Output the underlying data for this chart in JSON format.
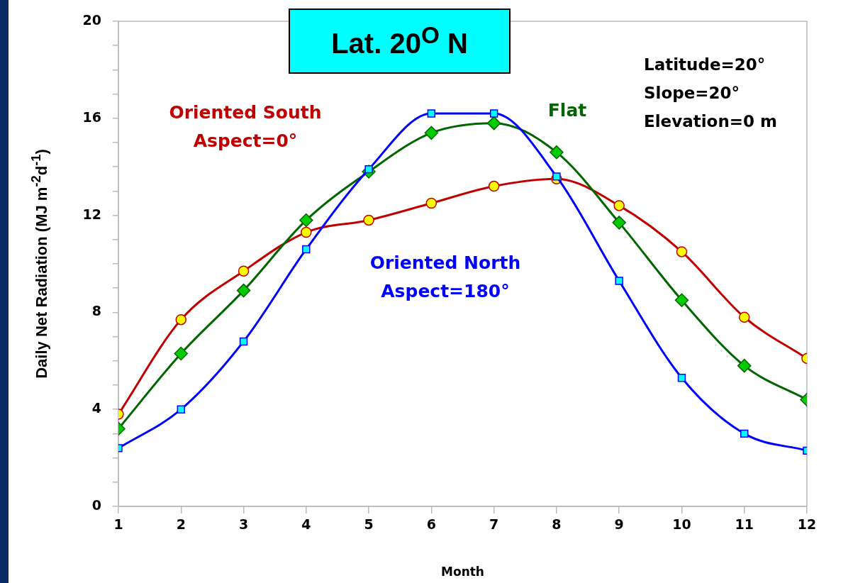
{
  "chart_data": {
    "type": "line",
    "title": "Lat. 20$^{O}$ N",
    "xlabel": "Month",
    "ylabel": "Daily Net Radiation (MJ m$^{-2}$d$^{-1}$)",
    "x": [
      1,
      2,
      3,
      4,
      5,
      6,
      7,
      8,
      9,
      10,
      11,
      12
    ],
    "xlim": [
      1,
      12
    ],
    "xticks": [
      1,
      2,
      3,
      4,
      5,
      6,
      7,
      8,
      9,
      10,
      11,
      12
    ],
    "ylim": [
      0,
      20
    ],
    "yticks": [
      0,
      {
        "value": 1,
        "label": null
      },
      {
        "value": 2,
        "label": null
      },
      {
        "value": 3,
        "label": null
      },
      4,
      {
        "value": 5,
        "label": null
      },
      {
        "value": 6,
        "label": null
      },
      {
        "value": 7,
        "label": null
      },
      8,
      {
        "value": 9,
        "label": null
      },
      {
        "value": 10,
        "label": null
      },
      {
        "value": 11,
        "label": null
      },
      12,
      {
        "value": 13,
        "label": null
      },
      {
        "value": 14,
        "label": null
      },
      {
        "value": 15,
        "label": null
      },
      16,
      {
        "value": 17,
        "label": null
      },
      {
        "value": 18,
        "label": null
      },
      {
        "value": 19,
        "label": null
      },
      20
    ],
    "grid": false,
    "legend": false,
    "line_style": "solid",
    "series": [
      {
        "name": "Oriented South",
        "color": "#c00000",
        "marker": "circle",
        "values": [
          3.8,
          7.7,
          9.7,
          11.3,
          11.8,
          12.5,
          13.2,
          13.5,
          12.4,
          10.5,
          7.8,
          6.1
        ]
      },
      {
        "name": "Flat",
        "color": "#006600",
        "marker": "diamond",
        "values": [
          3.2,
          6.3,
          8.9,
          11.8,
          13.8,
          15.4,
          15.8,
          14.6,
          11.7,
          8.5,
          5.8,
          4.4
        ]
      },
      {
        "name": "Oriented North",
        "color": "#0000ff",
        "marker": "square",
        "values": [
          2.4,
          4.0,
          6.8,
          10.6,
          13.9,
          16.2,
          16.2,
          13.6,
          9.3,
          5.3,
          3.0,
          2.3
        ]
      }
    ],
    "annotations": [
      "Aspect=0°",
      "Aspect=180°",
      "Latitude=20°",
      "Slope=20°",
      "Elevation=0 m"
    ]
  }
}
